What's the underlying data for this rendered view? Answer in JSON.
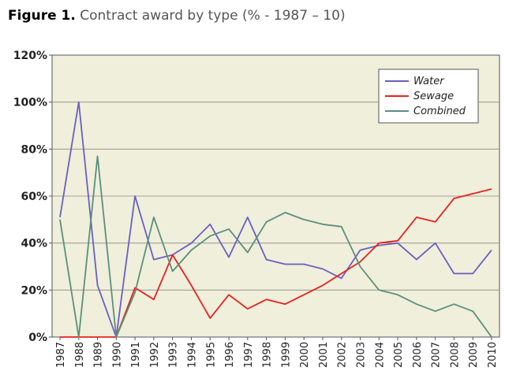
{
  "title": {
    "figure_label": "Figure 1.",
    "text": "Contract award by type (% - 1987 – 10)"
  },
  "chart_data": {
    "type": "line",
    "title": "Contract award by type (% - 1987 – 10)",
    "x": [
      "1987",
      "1988",
      "1989",
      "1990",
      "1991",
      "1992",
      "1993",
      "1994",
      "1995",
      "1996",
      "1997",
      "1998",
      "1999",
      "2000",
      "2001",
      "2002",
      "2003",
      "2004",
      "2005",
      "2006",
      "2007",
      "2008",
      "2009",
      "2010"
    ],
    "y_ticks": [
      "0%",
      "20%",
      "40%",
      "60%",
      "80%",
      "100%",
      "120%"
    ],
    "ylim": [
      0,
      120
    ],
    "grid": true,
    "legend_position": "top-right",
    "background_color": "#efefdc",
    "series": [
      {
        "name": "Water",
        "color": "#6a5fc0",
        "values": [
          51,
          100,
          22,
          0,
          60,
          33,
          35,
          40,
          48,
          34,
          51,
          33,
          31,
          31,
          29,
          25,
          37,
          39,
          40,
          33,
          40,
          27,
          27,
          37
        ]
      },
      {
        "name": "Sewage",
        "color": "#e8211c",
        "values": [
          0,
          0,
          0,
          0,
          21,
          16,
          35,
          22,
          8,
          18,
          12,
          16,
          14,
          18,
          22,
          27,
          32,
          40,
          41,
          51,
          49,
          59,
          61,
          63
        ]
      },
      {
        "name": "Combined",
        "color": "#5b8f7a",
        "values": [
          50,
          0,
          77,
          0,
          19,
          51,
          28,
          37,
          43,
          46,
          36,
          49,
          53,
          50,
          48,
          47,
          30,
          20,
          18,
          14,
          11,
          14,
          11,
          0
        ]
      }
    ]
  }
}
